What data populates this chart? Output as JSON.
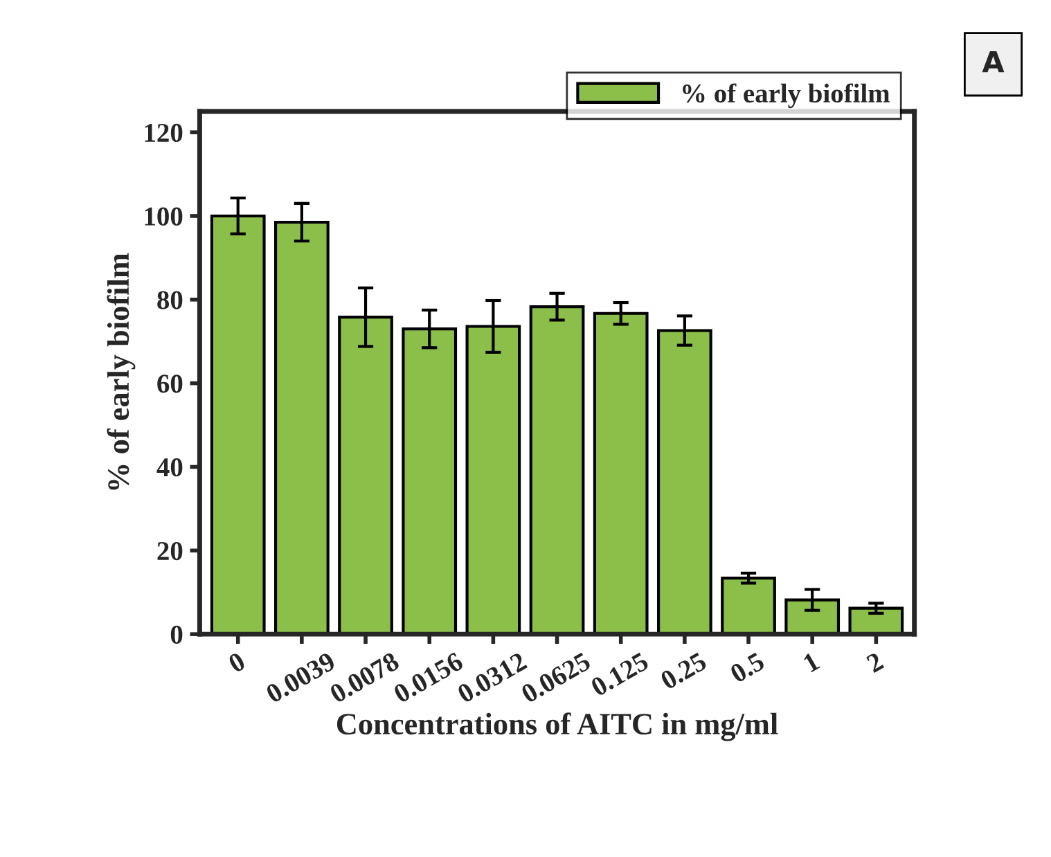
{
  "chart_data": {
    "type": "bar",
    "xlabel": "Concentrations of AITC in mg/ml",
    "ylabel": "% of early biofilm",
    "categories": [
      "0",
      "0.0039",
      "0.0078",
      "0.0156",
      "0.0312",
      "0.0625",
      "0.125",
      "0.25",
      "0.5",
      "1",
      "2"
    ],
    "series": [
      {
        "name": "% of early biofilm",
        "color": "#8cbf4a",
        "values": [
          100,
          98.5,
          75.8,
          73,
          73.6,
          78.3,
          76.7,
          72.6,
          13.4,
          8.2,
          6.2
        ],
        "errors": [
          4.3,
          4.5,
          7,
          4.5,
          6.2,
          3.2,
          2.6,
          3.5,
          1.2,
          2.5,
          1.2
        ]
      }
    ],
    "ylim": [
      0,
      125
    ],
    "yticks": [
      0,
      20,
      40,
      60,
      80,
      100,
      120
    ],
    "legend": "top right",
    "grid": false,
    "annotations": [
      "A"
    ]
  }
}
